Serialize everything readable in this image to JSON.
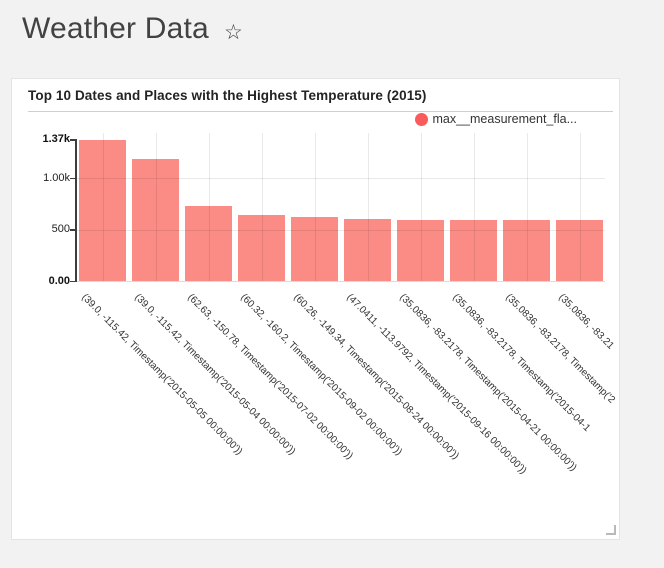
{
  "header": {
    "title": "Weather Data",
    "favorite_icon": "☆"
  },
  "card": {
    "title": "Top 10 Dates and Places with the Highest Temperature (2015)",
    "legend_label": "max__measurement_fla...",
    "legend_color": "#f85c5c"
  },
  "colors": {
    "bar": "#fb8b85",
    "page_background": "#f2f2f2"
  },
  "chart_data": {
    "type": "bar",
    "title": "Top 10 Dates and Places with the Highest Temperature (2015)",
    "legend": [
      "max__measurement_fla..."
    ],
    "legend_position": "top-right",
    "grid": true,
    "x_tick_angle": 45,
    "xlabel": "",
    "ylabel": "",
    "ylim": [
      0,
      1430
    ],
    "categories": [
      "(39.0, -115.42, Timestamp('2015-05-05 00:00:00'))",
      "(39.0, -115.42, Timestamp('2015-05-04 00:00:00'))",
      "(62.63, -150.78, Timestamp('2015-07-02 00:00:00'))",
      "(60.32, -160.2, Timestamp('2015-09-02 00:00:00'))",
      "(60.26, -149.34, Timestamp('2015-08-24 00:00:00'))",
      "(47.0411, -113.9792, Timestamp('2015-09-16 00:00:00'))",
      "(35.0836, -83.2178, Timestamp('2015-04-21 00:00:00'))",
      "(35.0836, -83.2178, Timestamp('2015-04-1",
      "(35.0836, -83.2178, Timestamp('2",
      "(35.0836, -83.21"
    ],
    "values": [
      1370,
      1185,
      728,
      640,
      622,
      598,
      596,
      595,
      594,
      593
    ],
    "yticks": [
      {
        "value": 0,
        "label": "0.00",
        "bold": true
      },
      {
        "value": 500,
        "label": "500",
        "bold": false
      },
      {
        "value": 1000,
        "label": "1.00k",
        "bold": false
      },
      {
        "value": 1370,
        "label": "1.37k",
        "bold": true
      }
    ]
  }
}
